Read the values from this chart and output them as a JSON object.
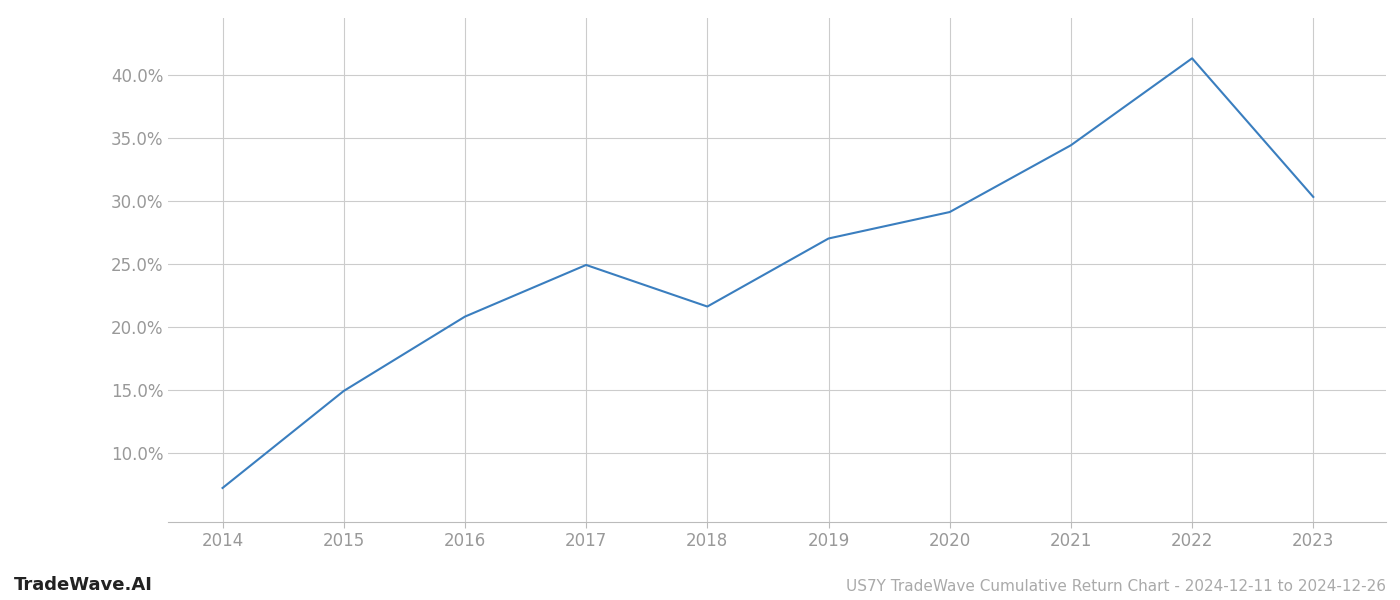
{
  "x_years": [
    2014,
    2015,
    2016,
    2017,
    2018,
    2019,
    2020,
    2021,
    2022,
    2023
  ],
  "y_values": [
    0.072,
    0.149,
    0.208,
    0.249,
    0.216,
    0.27,
    0.291,
    0.344,
    0.413,
    0.303
  ],
  "line_color": "#3a7ebf",
  "line_width": 1.5,
  "background_color": "#ffffff",
  "grid_color": "#cccccc",
  "tick_label_color": "#999999",
  "ylim": [
    0.045,
    0.445
  ],
  "yticks": [
    0.1,
    0.15,
    0.2,
    0.25,
    0.3,
    0.35,
    0.4
  ],
  "xticks": [
    2014,
    2015,
    2016,
    2017,
    2018,
    2019,
    2020,
    2021,
    2022,
    2023
  ],
  "xlim_left": 2013.55,
  "xlim_right": 2023.6,
  "title": "US7Y TradeWave Cumulative Return Chart - 2024-12-11 to 2024-12-26",
  "watermark_left": "TradeWave.AI",
  "title_color": "#aaaaaa",
  "watermark_color": "#222222",
  "tick_fontsize": 12,
  "title_fontsize": 11,
  "watermark_fontsize": 13
}
